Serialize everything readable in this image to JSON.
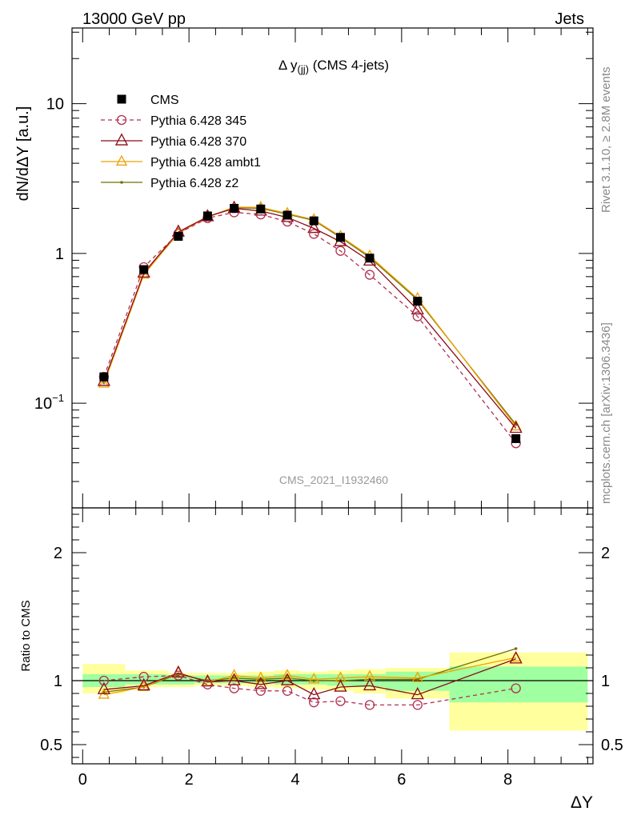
{
  "header": {
    "left": "13000 GeV pp",
    "right": "Jets"
  },
  "side_labels": {
    "top": "Rivet 3.1.10, ≥ 2.8M events",
    "bottom": "mcplots.cern.ch [arXiv:1306.3436]"
  },
  "watermark": "CMS_2021_I1932460",
  "colors": {
    "data": "#000000",
    "p345": "#b03050",
    "p370": "#8b0a14",
    "ambt1": "#f0a000",
    "z2": "#707000",
    "band_inner": "#a0ffa0",
    "band_outer": "#ffff9e"
  },
  "chart_data": [
    {
      "type": "scatter",
      "title": "Δ y(jj) (CMS 4-jets)",
      "title_main": "Δ y",
      "title_sub": "(jj)",
      "title_rest": " (CMS 4-jets)",
      "ylabel": "dN/dΔY [a.u.]",
      "yscale": "log",
      "xlim": [
        -0.2,
        9.6
      ],
      "ylim": [
        0.02,
        32
      ],
      "yticks": [
        {
          "value": 0.1,
          "base": "10",
          "exp": "−1"
        },
        {
          "value": 1,
          "base": "1",
          "exp": ""
        },
        {
          "value": 10,
          "base": "10",
          "exp": ""
        }
      ],
      "legend_position": "top-left",
      "x": [
        0.4,
        1.15,
        1.8,
        2.35,
        2.85,
        3.35,
        3.85,
        4.35,
        4.85,
        5.4,
        6.3,
        8.15
      ],
      "series": [
        {
          "name": "CMS",
          "key": "data",
          "marker": "square",
          "line": "none",
          "values": [
            0.15,
            0.78,
            1.3,
            1.78,
            2.0,
            1.98,
            1.8,
            1.65,
            1.28,
            0.93,
            0.48,
            0.058
          ]
        },
        {
          "name": "Pythia 6.428 345",
          "key": "p345",
          "marker": "circle-open",
          "line": "dashed",
          "values": [
            0.15,
            0.81,
            1.36,
            1.72,
            1.88,
            1.82,
            1.63,
            1.35,
            1.04,
            0.72,
            0.38,
            0.054
          ]
        },
        {
          "name": "Pythia 6.428 370",
          "key": "p370",
          "marker": "triangle-open",
          "line": "solid",
          "values": [
            0.14,
            0.74,
            1.39,
            1.76,
            2.0,
            1.92,
            1.74,
            1.47,
            1.2,
            0.89,
            0.42,
            0.068
          ]
        },
        {
          "name": "Pythia 6.428 ambt1",
          "key": "ambt1",
          "marker": "triangle-open",
          "line": "solid",
          "values": [
            0.135,
            0.72,
            1.37,
            1.75,
            2.04,
            2.03,
            1.85,
            1.68,
            1.3,
            0.96,
            0.5,
            0.07
          ]
        },
        {
          "name": "Pythia 6.428 z2",
          "key": "z2",
          "marker": "dot",
          "line": "solid",
          "values": [
            0.137,
            0.73,
            1.36,
            1.76,
            2.02,
            2.0,
            1.83,
            1.66,
            1.28,
            0.94,
            0.49,
            0.072
          ]
        }
      ]
    },
    {
      "type": "scatter",
      "ylabel": "Ratio to CMS",
      "xlabel": "ΔY",
      "xlim": [
        -0.2,
        9.6
      ],
      "ylim": [
        0.35,
        2.35
      ],
      "xticks": [
        0,
        2,
        4,
        6,
        8
      ],
      "yticks": [
        0.5,
        1,
        2
      ],
      "bands": [
        {
          "x0": 0.0,
          "x1": 0.8,
          "inner": [
            0.95,
            1.05
          ],
          "outer": [
            0.9,
            1.13
          ]
        },
        {
          "x0": 0.8,
          "x1": 1.6,
          "inner": [
            0.97,
            1.05
          ],
          "outer": [
            0.95,
            1.08
          ]
        },
        {
          "x0": 1.6,
          "x1": 2.1,
          "inner": [
            0.97,
            1.04
          ],
          "outer": [
            0.95,
            1.06
          ]
        },
        {
          "x0": 2.1,
          "x1": 2.6,
          "inner": [
            0.98,
            1.04
          ],
          "outer": [
            0.96,
            1.06
          ]
        },
        {
          "x0": 2.6,
          "x1": 3.1,
          "inner": [
            0.98,
            1.04
          ],
          "outer": [
            0.96,
            1.06
          ]
        },
        {
          "x0": 3.1,
          "x1": 3.6,
          "inner": [
            0.98,
            1.04
          ],
          "outer": [
            0.95,
            1.07
          ]
        },
        {
          "x0": 3.6,
          "x1": 4.1,
          "inner": [
            0.97,
            1.05
          ],
          "outer": [
            0.94,
            1.08
          ]
        },
        {
          "x0": 4.1,
          "x1": 4.6,
          "inner": [
            0.97,
            1.05
          ],
          "outer": [
            0.93,
            1.07
          ]
        },
        {
          "x0": 4.6,
          "x1": 5.1,
          "inner": [
            0.96,
            1.05
          ],
          "outer": [
            0.92,
            1.08
          ]
        },
        {
          "x0": 5.1,
          "x1": 5.7,
          "inner": [
            0.95,
            1.05
          ],
          "outer": [
            0.9,
            1.09
          ]
        },
        {
          "x0": 5.7,
          "x1": 6.9,
          "inner": [
            0.92,
            1.07
          ],
          "outer": [
            0.86,
            1.1
          ]
        },
        {
          "x0": 6.9,
          "x1": 9.5,
          "inner": [
            0.83,
            1.11
          ],
          "outer": [
            0.61,
            1.22
          ]
        }
      ],
      "series": [
        {
          "name": "Pythia 6.428 345",
          "key": "p345",
          "line": "dashed",
          "values": [
            1.0,
            1.03,
            1.04,
            0.97,
            0.94,
            0.92,
            0.92,
            0.83,
            0.84,
            0.81,
            0.81,
            0.94
          ]
        },
        {
          "name": "Pythia 6.428 370",
          "key": "p370",
          "line": "solid",
          "values": [
            0.93,
            0.96,
            1.06,
            0.99,
            1.0,
            0.97,
            1.0,
            0.89,
            0.95,
            0.96,
            0.89,
            1.17
          ]
        },
        {
          "name": "Pythia 6.428 ambt1",
          "key": "ambt1",
          "line": "solid",
          "values": [
            0.89,
            0.95,
            1.06,
            0.99,
            1.04,
            1.02,
            1.04,
            1.01,
            1.02,
            1.03,
            1.02,
            1.18
          ]
        },
        {
          "name": "Pythia 6.428 z2",
          "key": "z2",
          "line": "solid",
          "values": [
            0.91,
            0.95,
            1.05,
            1.0,
            1.02,
            1.01,
            1.02,
            1.0,
            1.0,
            1.01,
            1.01,
            1.25
          ]
        }
      ]
    }
  ]
}
